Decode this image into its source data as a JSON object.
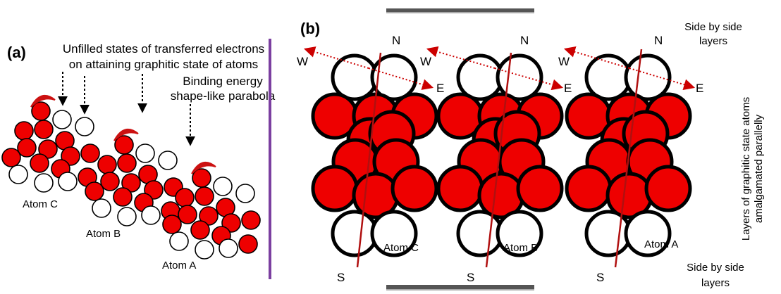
{
  "panel_a": {
    "label": "(a)",
    "annotation_unfilled": [
      "Unfilled states of transferred electrons",
      "on attaining graphitic state of atoms"
    ],
    "annotation_binding": [
      "Binding energy",
      "shape-like parabola"
    ],
    "atoms": [
      "Atom C",
      "Atom B",
      "Atom A"
    ]
  },
  "panel_b": {
    "label": "(b)",
    "atoms": [
      "Atom C",
      "Atom B",
      "Atom A"
    ],
    "compass": {
      "north": "N",
      "south": "S",
      "west": "W",
      "east": "E"
    },
    "side_top": [
      "Side by side",
      "layers"
    ],
    "side_bottom": [
      "Side by side",
      "layers"
    ],
    "vertical_caption": [
      "Layers of graphitic state atoms",
      "amalgamated parallelly"
    ]
  },
  "colors": {
    "filled_atom": "#ee0000",
    "outline": "#000000",
    "parabola": "#cc1111",
    "axis_line": "#b01010",
    "dotted_arrow": "#cc0000",
    "divider": "#7b3fa0",
    "plate": "#555555"
  }
}
